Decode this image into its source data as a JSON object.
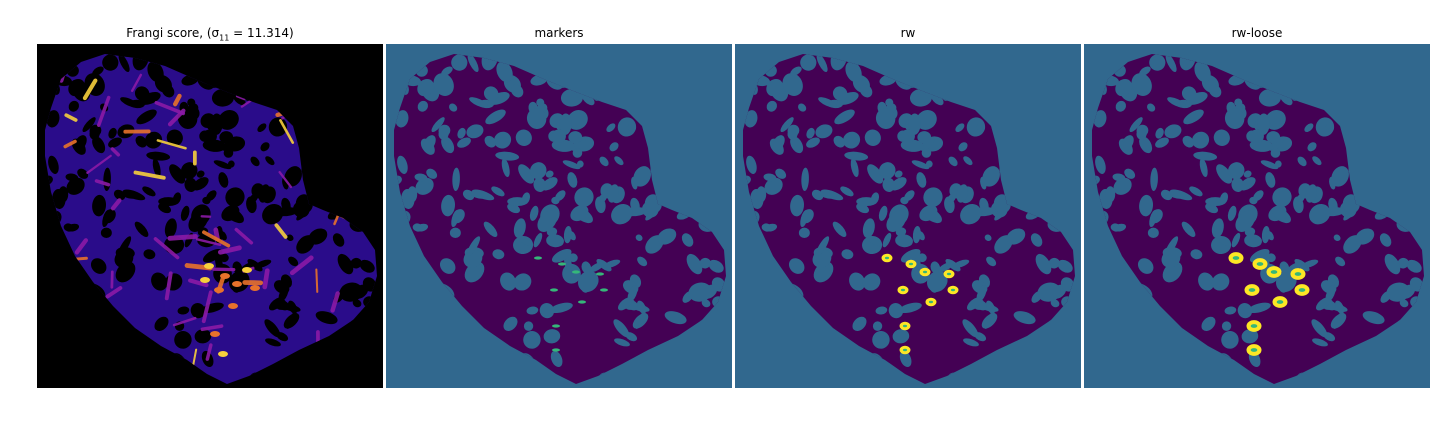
{
  "panels": [
    {
      "id": "frangi",
      "title_prefix": "Frangi score, ",
      "title_math_open": "(σ",
      "title_math_sub": "11",
      "title_math_close": " = 11.314)"
    },
    {
      "id": "markers",
      "title": "markers"
    },
    {
      "id": "rw",
      "title": "rw"
    },
    {
      "id": "rw_loose",
      "title": "rw-loose"
    }
  ],
  "colors": {
    "frangi_bg": "#000000",
    "frangi_low": "#2a0c8a",
    "frangi_mid": "#8b1aa6",
    "frangi_high": "#e8722b",
    "frangi_peak": "#f7d03c",
    "seg_bg": "#31688e",
    "seg_tissue": "#440154",
    "seg_marker": "#35b779",
    "seg_yellow": "#fde725"
  }
}
